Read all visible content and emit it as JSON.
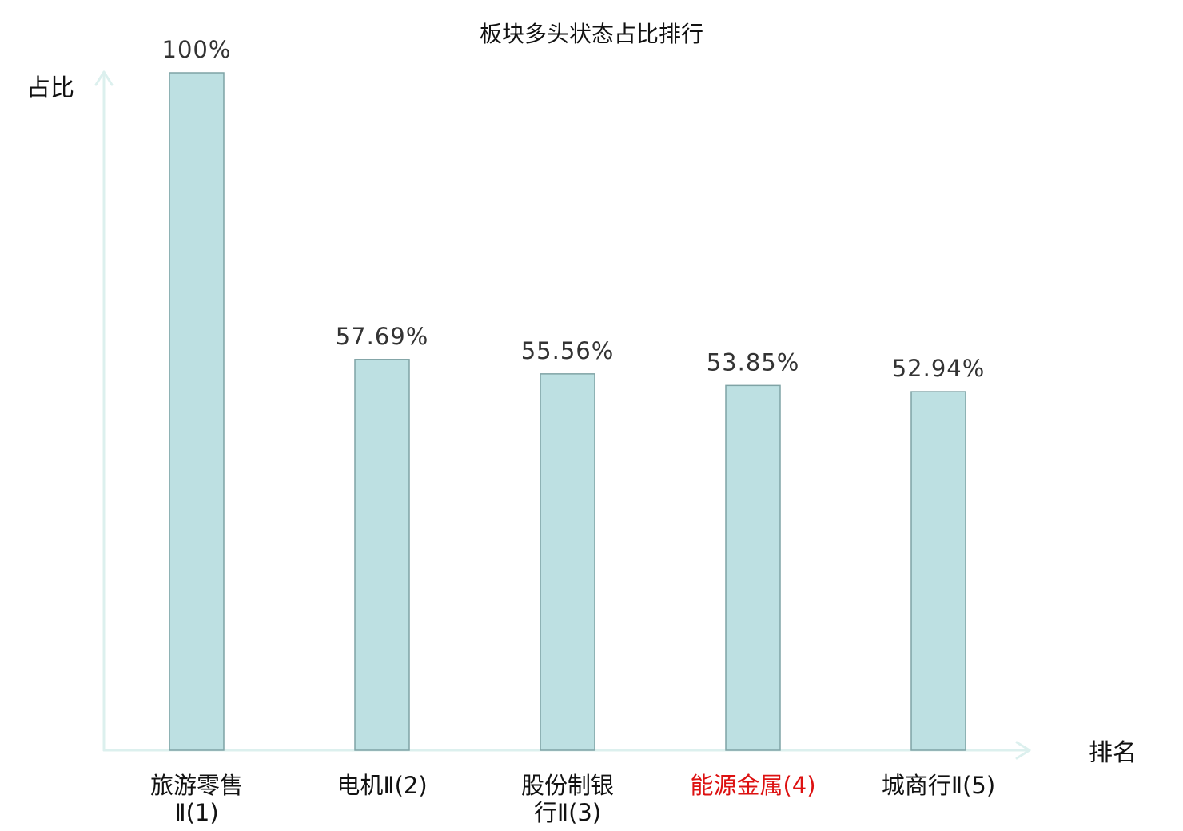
{
  "chart_data": {
    "type": "bar",
    "title": "板块多头状态占比排行",
    "ylabel": "占比",
    "xlabel": "排名",
    "ylim": [
      0,
      100
    ],
    "grid": false,
    "categories": [
      {
        "name_lines": [
          "旅游零售",
          "Ⅱ(1)"
        ],
        "highlight": false
      },
      {
        "name_lines": [
          "电机Ⅱ(2)"
        ],
        "highlight": false
      },
      {
        "name_lines": [
          "股份制银",
          "行Ⅱ(3)"
        ],
        "highlight": false
      },
      {
        "name_lines": [
          "能源金属(4)"
        ],
        "highlight": true
      },
      {
        "name_lines": [
          "城商行Ⅱ(5)"
        ],
        "highlight": false
      }
    ],
    "values": [
      100,
      57.69,
      55.56,
      53.85,
      52.94
    ],
    "value_labels": [
      "100%",
      "57.69%",
      "55.56%",
      "53.85%",
      "52.94%"
    ]
  },
  "colors": {
    "bar_fill": "#bde0e2",
    "bar_stroke": "#7fa3a5",
    "axis": "#dcf0ee",
    "highlight_text": "#dd1111",
    "normal_text": "#111111",
    "value_text": "#333333"
  }
}
